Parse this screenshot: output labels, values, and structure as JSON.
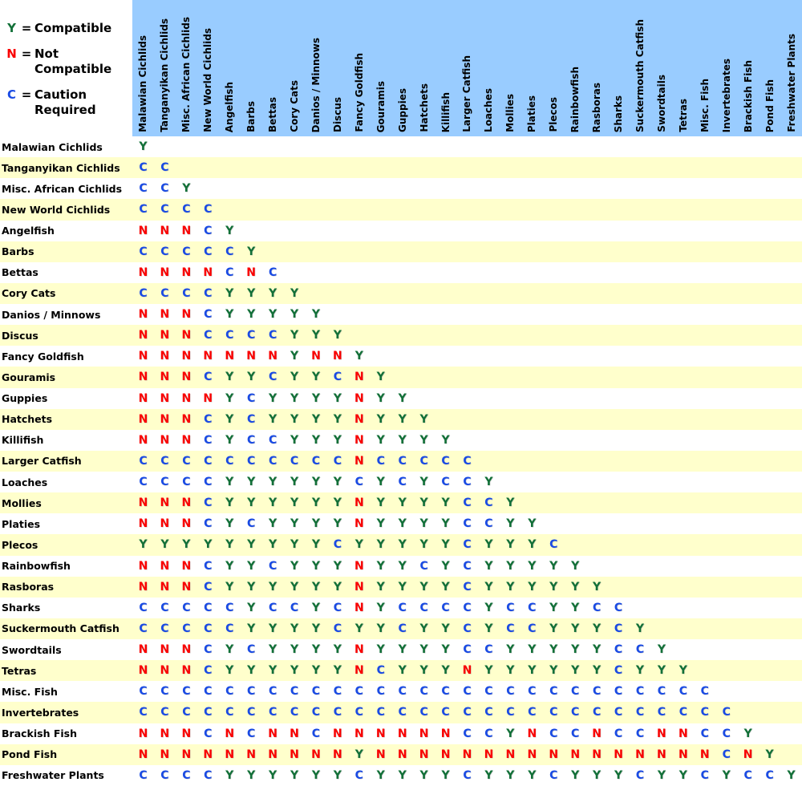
{
  "legend": {
    "eq": "=",
    "items": [
      {
        "name": "compatible",
        "symbol": "Y",
        "color": "#127038",
        "label_lines": [
          "Compatible",
          ""
        ]
      },
      {
        "name": "not-compatible",
        "symbol": "N",
        "color": "#FA0000",
        "label_lines": [
          "Not",
          "Compatible"
        ]
      },
      {
        "name": "caution-required",
        "symbol": "C",
        "color": "#1A4BE4",
        "label_lines": [
          "Caution",
          "Required"
        ]
      }
    ]
  },
  "colors": {
    "compatible": "#127038",
    "not_compatible": "#FA0000",
    "caution": "#1A4BE4",
    "header_bg": "#99CCFF",
    "row_bg": "#FFFFFF",
    "row_alt_bg": "#FFFFCC",
    "text": "#000000"
  },
  "chart_data": {
    "type": "heatmap",
    "legend_position": "top-left",
    "codes": {
      "Y": "Compatible",
      "N": "Not Compatible",
      "C": "Caution Required"
    },
    "categories": [
      "Malawian Cichlids",
      "Tanganyikan Cichlids",
      "Misc. African Cichlids",
      "New World Cichlids",
      "Angelfish",
      "Barbs",
      "Bettas",
      "Cory Cats",
      "Danios / Minnows",
      "Discus",
      "Fancy Goldfish",
      "Gouramis",
      "Guppies",
      "Hatchets",
      "Killifish",
      "Larger Catfish",
      "Loaches",
      "Mollies",
      "Platies",
      "Plecos",
      "Rainbowfish",
      "Rasboras",
      "Sharks",
      "Suckermouth Catfish",
      "Swordtails",
      "Tetras",
      "Misc. Fish",
      "Invertebrates",
      "Brackish Fish",
      "Pond Fish",
      "Freshwater Plants"
    ],
    "matrix": [
      "Y",
      "CC",
      "CCY",
      "CCCC",
      "NNNCY",
      "CCCCCY",
      "NNNNCNC",
      "CCCCYYYY",
      "NNNCYYYYY",
      "NNNCCCCYYY",
      "NNNNNNNYNNY",
      "NNNCYYCYYCNY",
      "NNNNYCYYYYNYY",
      "NNNCYCYYYYNYYY",
      "NNNCYCCYYYNYYYY",
      "CCCCCCCCCCNCCCCC",
      "CCCCYYYYYYCYCYCCY",
      "NNNCYYYYYYNYYYYCCY",
      "NNNCYCYYYYNYYYYCCYY",
      "YYYYYYYYYCYYYYYCYYYC",
      "NNNCYYCYYYNYYCYCYYYYY",
      "NNNCYYYYYYNYYYYCYYYYYY",
      "CCCCCYCCYCNYCCCCYCCYYCC",
      "CCCCCYYYYCYYCYYCYCCYYYCY",
      "NNNCYCYYYYNYYYYCCYYYYYCCY",
      "NNNCYYYYYYNCYYYNYYYYYYCYYY",
      "CCCCCCCCCCCCCCCCCCCCCCCCCCC",
      "CCCCCCCCCCCCCCCCCCCCCCCCCCCC",
      "NNNCNCNNCNNNNNNCCYNCCNCCNNCCY",
      "NNNNNNNNNNYNNNNNNNNNNNNNNNNCNY",
      "CCCCYYYYYYCYYYYCYYYCYYYCYYCYCCY"
    ]
  }
}
